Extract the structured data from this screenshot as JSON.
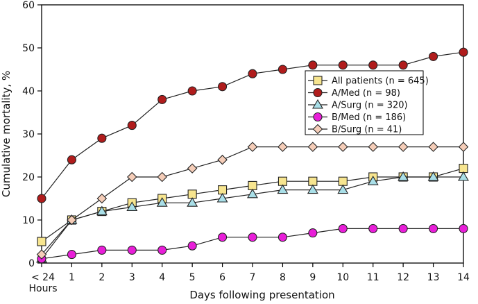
{
  "chart_data": {
    "type": "line",
    "xlabel": "Days following presentation",
    "ylabel": "Cumulative mortality, %",
    "x_tick_labels": [
      "< 24",
      "1",
      "2",
      "3",
      "4",
      "5",
      "6",
      "7",
      "8",
      "9",
      "10",
      "11",
      "12",
      "13",
      "14"
    ],
    "x_tick_sublabel": "Hours",
    "x": [
      0,
      1,
      2,
      3,
      4,
      5,
      6,
      7,
      8,
      9,
      10,
      11,
      12,
      13,
      14
    ],
    "ylim": [
      0,
      60
    ],
    "y_ticks": [
      0,
      10,
      20,
      30,
      40,
      50,
      60
    ],
    "grid": false,
    "legend_position": "right",
    "series": [
      {
        "name": "All patients (n = 645)",
        "marker": "square",
        "color": "#f7e58f",
        "values": [
          5,
          10,
          12,
          14,
          15,
          16,
          17,
          18,
          19,
          19,
          19,
          20,
          20,
          20,
          22
        ]
      },
      {
        "name": "A/Med (n = 98)",
        "marker": "circle",
        "color": "#b01c1c",
        "values": [
          15,
          24,
          29,
          32,
          38,
          40,
          41,
          44,
          45,
          46,
          46,
          46,
          46,
          48,
          49
        ]
      },
      {
        "name": "A/Surg (n = 320)",
        "marker": "triangle",
        "color": "#a9dfe8",
        "values": [
          1,
          10,
          12,
          13,
          14,
          14,
          15,
          16,
          17,
          17,
          17,
          19,
          20,
          20,
          20
        ]
      },
      {
        "name": "B/Med (n = 186)",
        "marker": "circle",
        "color": "#e81ed8",
        "values": [
          1,
          2,
          3,
          3,
          3,
          4,
          6,
          6,
          6,
          7,
          8,
          8,
          8,
          8,
          8
        ]
      },
      {
        "name": "B/Surg (n = 41)",
        "marker": "diamond",
        "color": "#f5cdb8",
        "values": [
          2,
          10,
          15,
          20,
          20,
          22,
          24,
          27,
          27,
          27,
          27,
          27,
          27,
          27,
          27
        ]
      }
    ]
  }
}
